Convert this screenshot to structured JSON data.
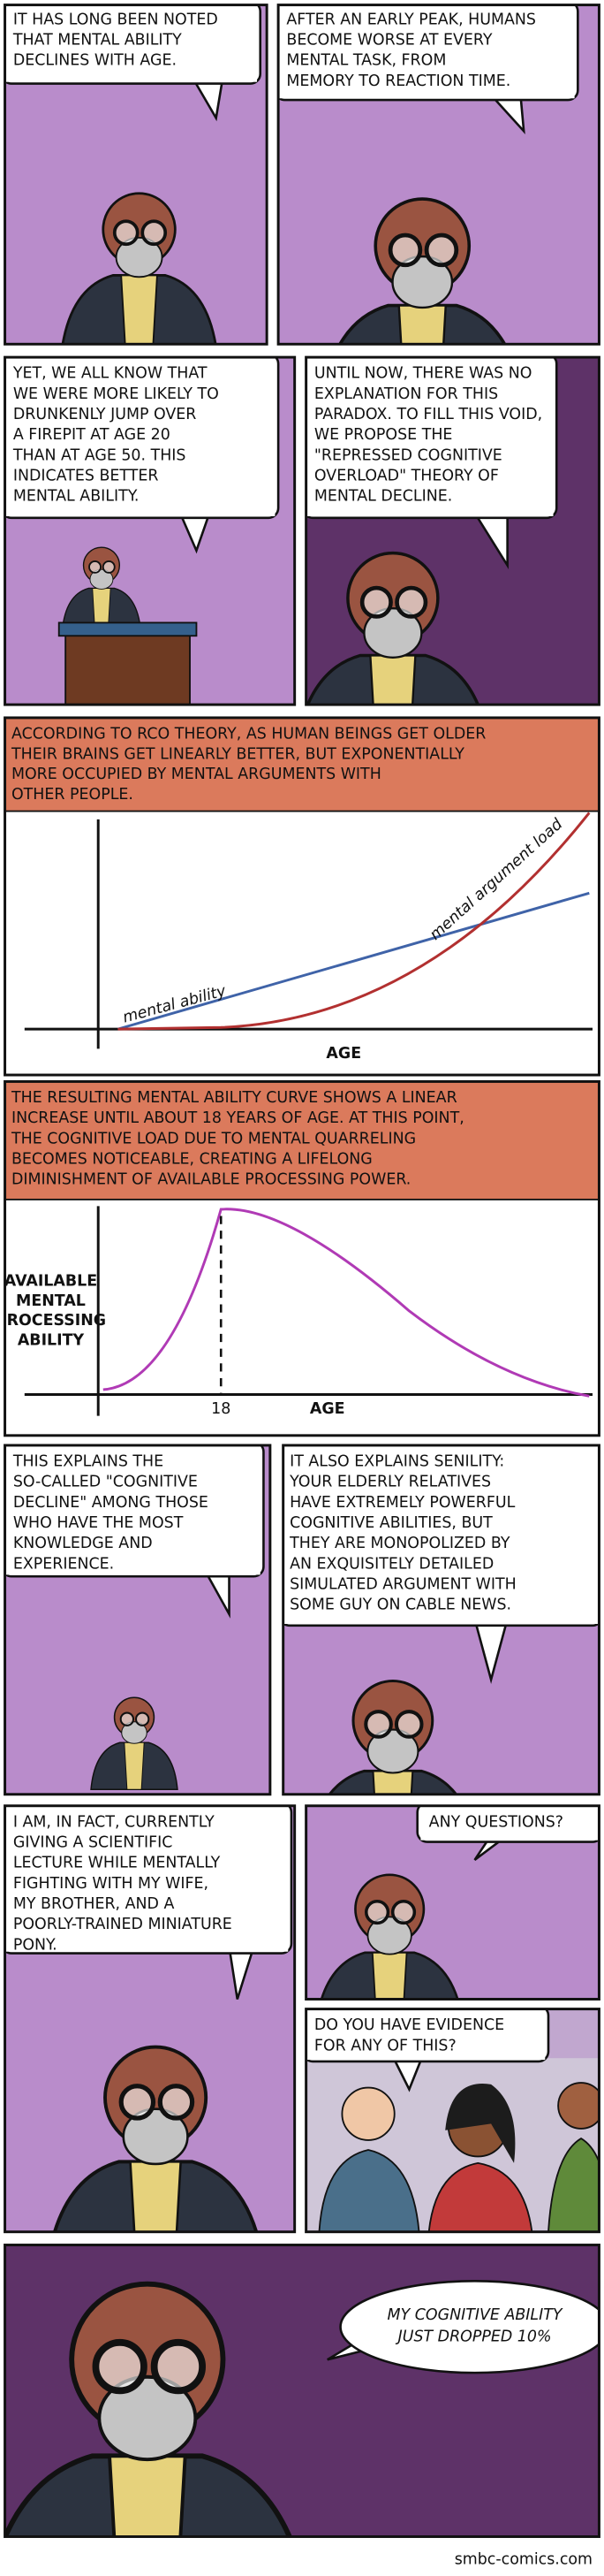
{
  "panel_1": {
    "lines": [
      "IT HAS LONG BEEN NOTED",
      "THAT MENTAL ABILITY",
      "DECLINES WITH AGE."
    ]
  },
  "panel_2": {
    "lines": [
      "AFTER AN EARLY PEAK, HUMANS",
      "BECOME WORSE AT EVERY",
      "MENTAL TASK, FROM",
      "MEMORY TO REACTION TIME."
    ]
  },
  "panel_3": {
    "lines": [
      "YET, WE ALL KNOW THAT",
      "WE WERE MORE LIKELY TO",
      "DRUNKENLY JUMP OVER",
      "A FIREPIT AT AGE 20",
      "THAN AT AGE 50.  THIS",
      "INDICATES BETTER",
      "MENTAL ABILITY."
    ]
  },
  "panel_4": {
    "lines": [
      "UNTIL NOW, THERE WAS NO",
      "EXPLANATION FOR THIS",
      "PARADOX. TO FILL THIS VOID,",
      "WE PROPOSE THE",
      "\"REPRESSED COGNITIVE",
      "OVERLOAD\" THEORY OF",
      "MENTAL DECLINE."
    ]
  },
  "chart_1": {
    "caption": [
      "ACCORDING TO RCO THEORY, AS HUMAN BEINGS GET OLDER",
      "THEIR BRAINS GET LINEARLY BETTER,  BUT EXPONENTIALLY",
      "MORE OCCUPIED BY MENTAL ARGUMENTS WITH",
      "OTHER PEOPLE."
    ],
    "series_labels": [
      "mental ability",
      "mental argument load"
    ],
    "x_label": "AGE"
  },
  "chart_2": {
    "caption": [
      "THE RESULTING MENTAL ABILITY CURVE SHOWS A LINEAR",
      "INCREASE UNTIL ABOUT 18 YEARS OF AGE. AT THIS POINT,",
      "THE COGNITIVE LOAD DUE TO MENTAL QUARRELING",
      "BECOMES NOTICEABLE, CREATING A LIFELONG",
      "DIMINISHMENT OF AVAILABLE PROCESSING POWER."
    ],
    "y_label": [
      "AVAILABLE",
      "MENTAL",
      "PROCESSING",
      "ABILITY"
    ],
    "x_tick": "18",
    "x_label": "AGE"
  },
  "panel_5": {
    "lines": [
      "THIS EXPLAINS THE",
      "SO-CALLED \"COGNITIVE",
      "DECLINE\" AMONG THOSE",
      "WHO HAVE THE MOST",
      "KNOWLEDGE AND",
      "EXPERIENCE."
    ]
  },
  "panel_6": {
    "lines": [
      "IT ALSO EXPLAINS SENILITY:",
      "YOUR ELDERLY RELATIVES",
      "HAVE EXTREMELY POWERFUL",
      "COGNITIVE ABILITIES, BUT",
      "THEY ARE MONOPOLIZED BY",
      "AN EXQUISITELY DETAILED",
      "SIMULATED ARGUMENT WITH",
      "SOME GUY ON CABLE NEWS."
    ]
  },
  "panel_7": {
    "lines": [
      "I AM, IN FACT, CURRENTLY",
      "GIVING A SCIENTIFIC",
      "LECTURE WHILE MENTALLY",
      "FIGHTING WITH MY WIFE,",
      "MY BROTHER, AND A",
      "POORLY-TRAINED MINIATURE",
      "PONY."
    ]
  },
  "panel_8": {
    "lines": [
      "ANY QUESTIONS?"
    ]
  },
  "panel_9": {
    "lines": [
      "DO YOU HAVE EVIDENCE",
      "FOR ANY OF THIS?"
    ]
  },
  "panel_10": {
    "lines": [
      "MY COGNITIVE ABILITY",
      "JUST DROPPED 10%"
    ]
  },
  "footer": "smbc-comics.com"
}
